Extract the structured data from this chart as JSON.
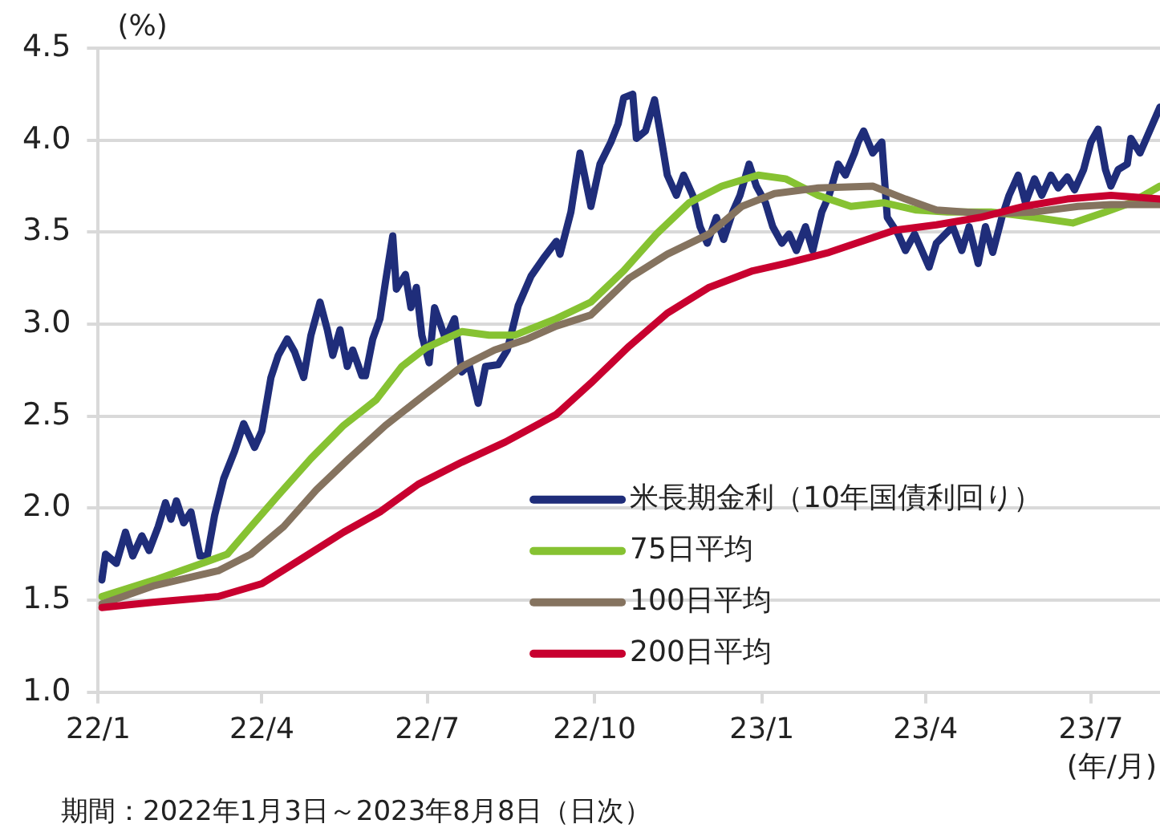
{
  "chart_data": {
    "type": "line",
    "ylabel": "(%)",
    "xlabel": "(年/月)",
    "annotations": [
      "期間：2022年1月3日～2023年8月8日（日次）"
    ],
    "xlim": [
      "2022-01-01",
      "2023-08-08"
    ],
    "xticks": [
      {
        "value": "2022-01-01",
        "label": "22/1"
      },
      {
        "value": "2022-04-01",
        "label": "22/4"
      },
      {
        "value": "2022-07-01",
        "label": "22/7"
      },
      {
        "value": "2022-10-01",
        "label": "22/10"
      },
      {
        "value": "2023-01-01",
        "label": "23/1"
      },
      {
        "value": "2023-04-01",
        "label": "23/4"
      },
      {
        "value": "2023-07-01",
        "label": "23/7"
      }
    ],
    "ylim": [
      1.0,
      4.5
    ],
    "yticks": [
      {
        "value": 1.0,
        "label": "1.0"
      },
      {
        "value": 1.5,
        "label": "1.5"
      },
      {
        "value": 2.0,
        "label": "2.0"
      },
      {
        "value": 2.5,
        "label": "2.5"
      },
      {
        "value": 3.0,
        "label": "3.0"
      },
      {
        "value": 3.5,
        "label": "3.5"
      },
      {
        "value": 4.0,
        "label": "4.0"
      },
      {
        "value": 4.5,
        "label": "4.5"
      }
    ],
    "grid": "y",
    "legend": "bottom right",
    "series": [
      {
        "name": "米長期金利（10年国債利回り）",
        "color": "#1f2d7a",
        "x": [
          "2022-01-03",
          "2022-01-05",
          "2022-01-11",
          "2022-01-16",
          "2022-01-20",
          "2022-01-25",
          "2022-01-29",
          "2022-02-03",
          "2022-02-07",
          "2022-02-10",
          "2022-02-13",
          "2022-02-17",
          "2022-02-21",
          "2022-02-26",
          "2022-03-02",
          "2022-03-06",
          "2022-03-11",
          "2022-03-17",
          "2022-03-22",
          "2022-03-28",
          "2022-04-01",
          "2022-04-06",
          "2022-04-10",
          "2022-04-15",
          "2022-04-19",
          "2022-04-24",
          "2022-04-28",
          "2022-05-03",
          "2022-05-07",
          "2022-05-10",
          "2022-05-14",
          "2022-05-18",
          "2022-05-21",
          "2022-05-26",
          "2022-05-28",
          "2022-06-01",
          "2022-06-05",
          "2022-06-08",
          "2022-06-12",
          "2022-06-14",
          "2022-06-19",
          "2022-06-22",
          "2022-06-25",
          "2022-06-28",
          "2022-07-02",
          "2022-07-05",
          "2022-07-11",
          "2022-07-16",
          "2022-07-20",
          "2022-07-24",
          "2022-07-29",
          "2022-08-02",
          "2022-08-09",
          "2022-08-14",
          "2022-08-20",
          "2022-08-27",
          "2022-09-03",
          "2022-09-10",
          "2022-09-12",
          "2022-09-18",
          "2022-09-23",
          "2022-09-29",
          "2022-10-04",
          "2022-10-10",
          "2022-10-14",
          "2022-10-17",
          "2022-10-22",
          "2022-10-24",
          "2022-10-29",
          "2022-11-03",
          "2022-11-07",
          "2022-11-10",
          "2022-11-15",
          "2022-11-19",
          "2022-11-24",
          "2022-11-28",
          "2022-12-02",
          "2022-12-07",
          "2022-12-11",
          "2022-12-16",
          "2022-12-20",
          "2022-12-25",
          "2022-12-29",
          "2023-01-03",
          "2023-01-07",
          "2023-01-12",
          "2023-01-16",
          "2023-01-20",
          "2023-01-25",
          "2023-01-29",
          "2023-02-03",
          "2023-02-07",
          "2023-02-12",
          "2023-02-16",
          "2023-02-21",
          "2023-02-23",
          "2023-02-26",
          "2023-03-03",
          "2023-03-08",
          "2023-03-11",
          "2023-03-17",
          "2023-03-21",
          "2023-03-26",
          "2023-03-30",
          "2023-04-03",
          "2023-04-07",
          "2023-04-12",
          "2023-04-16",
          "2023-04-21",
          "2023-04-25",
          "2023-04-30",
          "2023-05-04",
          "2023-05-08",
          "2023-05-13",
          "2023-05-17",
          "2023-05-22",
          "2023-05-26",
          "2023-05-31",
          "2023-06-04",
          "2023-06-09",
          "2023-06-13",
          "2023-06-18",
          "2023-06-22",
          "2023-06-27",
          "2023-07-01",
          "2023-07-05",
          "2023-07-09",
          "2023-07-12",
          "2023-07-16",
          "2023-07-21",
          "2023-07-23",
          "2023-07-28",
          "2023-08-08"
        ],
        "values": [
          1.61,
          1.75,
          1.7,
          1.87,
          1.74,
          1.85,
          1.77,
          1.9,
          2.03,
          1.94,
          2.04,
          1.92,
          1.98,
          1.74,
          1.74,
          1.96,
          2.16,
          2.31,
          2.46,
          2.33,
          2.42,
          2.71,
          2.83,
          2.92,
          2.85,
          2.71,
          2.94,
          3.12,
          2.97,
          2.83,
          2.97,
          2.77,
          2.86,
          2.72,
          2.72,
          2.92,
          3.03,
          3.23,
          3.48,
          3.19,
          3.27,
          3.09,
          3.2,
          2.94,
          2.79,
          3.09,
          2.92,
          3.03,
          2.74,
          2.78,
          2.57,
          2.77,
          2.78,
          2.86,
          3.1,
          3.26,
          3.36,
          3.45,
          3.38,
          3.61,
          3.93,
          3.64,
          3.87,
          3.99,
          4.09,
          4.23,
          4.25,
          4.01,
          4.05,
          4.22,
          3.99,
          3.81,
          3.7,
          3.81,
          3.7,
          3.53,
          3.44,
          3.58,
          3.46,
          3.61,
          3.7,
          3.87,
          3.75,
          3.66,
          3.53,
          3.44,
          3.49,
          3.4,
          3.53,
          3.4,
          3.61,
          3.7,
          3.87,
          3.81,
          3.93,
          3.99,
          4.05,
          3.93,
          3.99,
          3.58,
          3.49,
          3.4,
          3.49,
          3.4,
          3.31,
          3.44,
          3.49,
          3.53,
          3.4,
          3.53,
          3.33,
          3.53,
          3.39,
          3.58,
          3.7,
          3.81,
          3.66,
          3.79,
          3.7,
          3.81,
          3.74,
          3.8,
          3.73,
          3.84,
          3.99,
          4.06,
          3.84,
          3.75,
          3.84,
          3.87,
          4.01,
          3.93,
          4.18
        ]
      },
      {
        "name": "75日平均",
        "color": "#86c232",
        "x": [
          "2022-01-03",
          "2022-02-01",
          "2022-02-27",
          "2022-03-13",
          "2022-03-26",
          "2022-04-10",
          "2022-04-28",
          "2022-05-16",
          "2022-06-03",
          "2022-06-17",
          "2022-06-30",
          "2022-07-11",
          "2022-07-20",
          "2022-08-04",
          "2022-08-18",
          "2022-09-10",
          "2022-09-29",
          "2022-10-17",
          "2022-11-04",
          "2022-11-22",
          "2022-12-10",
          "2022-12-30",
          "2023-01-14",
          "2023-02-01",
          "2023-02-19",
          "2023-03-09",
          "2023-03-27",
          "2023-04-13",
          "2023-05-07",
          "2023-05-31",
          "2023-06-21",
          "2023-07-09",
          "2023-07-23",
          "2023-08-08"
        ],
        "values": [
          1.52,
          1.61,
          1.7,
          1.75,
          1.9,
          2.07,
          2.27,
          2.45,
          2.59,
          2.77,
          2.87,
          2.92,
          2.96,
          2.94,
          2.94,
          3.03,
          3.12,
          3.29,
          3.49,
          3.66,
          3.75,
          3.81,
          3.79,
          3.7,
          3.64,
          3.66,
          3.62,
          3.61,
          3.61,
          3.58,
          3.55,
          3.61,
          3.66,
          3.75
        ]
      },
      {
        "name": "100日平均",
        "color": "#85735f",
        "x": [
          "2022-01-03",
          "2022-02-01",
          "2022-03-08",
          "2022-03-26",
          "2022-04-13",
          "2022-05-01",
          "2022-05-19",
          "2022-06-08",
          "2022-06-30",
          "2022-07-20",
          "2022-08-07",
          "2022-08-25",
          "2022-09-10",
          "2022-09-29",
          "2022-10-20",
          "2022-11-10",
          "2022-12-03",
          "2022-12-21",
          "2023-01-08",
          "2023-02-01",
          "2023-03-03",
          "2023-03-21",
          "2023-04-07",
          "2023-05-07",
          "2023-05-31",
          "2023-06-24",
          "2023-07-12",
          "2023-08-08"
        ],
        "values": [
          1.48,
          1.58,
          1.66,
          1.75,
          1.9,
          2.1,
          2.27,
          2.45,
          2.62,
          2.77,
          2.86,
          2.92,
          2.99,
          3.05,
          3.25,
          3.38,
          3.49,
          3.64,
          3.71,
          3.74,
          3.75,
          3.68,
          3.62,
          3.6,
          3.61,
          3.64,
          3.65,
          3.65
        ]
      },
      {
        "name": "200日平均",
        "color": "#c8002f",
        "x": [
          "2022-01-03",
          "2022-02-01",
          "2022-03-08",
          "2022-04-01",
          "2022-04-22",
          "2022-05-16",
          "2022-06-05",
          "2022-06-26",
          "2022-07-20",
          "2022-08-13",
          "2022-09-10",
          "2022-09-29",
          "2022-10-20",
          "2022-11-10",
          "2022-12-03",
          "2022-12-27",
          "2023-01-14",
          "2023-02-07",
          "2023-02-25",
          "2023-03-15",
          "2023-04-07",
          "2023-05-01",
          "2023-05-25",
          "2023-06-18",
          "2023-07-12",
          "2023-08-08"
        ],
        "values": [
          1.46,
          1.49,
          1.52,
          1.59,
          1.72,
          1.87,
          1.98,
          2.13,
          2.25,
          2.36,
          2.51,
          2.68,
          2.88,
          3.06,
          3.2,
          3.29,
          3.33,
          3.39,
          3.45,
          3.51,
          3.54,
          3.58,
          3.64,
          3.68,
          3.7,
          3.68
        ]
      }
    ]
  }
}
